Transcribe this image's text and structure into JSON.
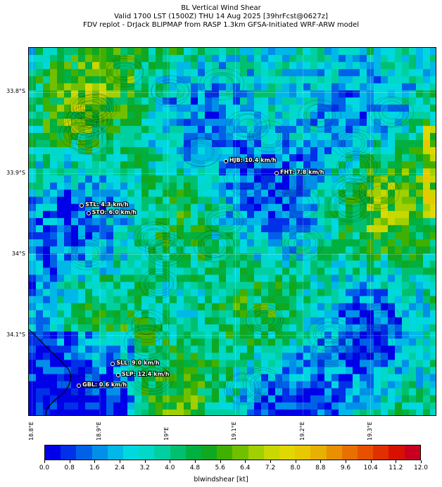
{
  "title": {
    "line1": "BL Vertical Wind Shear",
    "line2": "Valid 1700 LST (1500Z) THU 14 Aug 2025 [39hrFcst@0627z]",
    "line3": "FDV replot - DrJack BLIPMAP from RASP 1.3km GFSA-Initiated WRF-ARW model"
  },
  "axes": {
    "lat_labels": [
      "33.8°S",
      "33.9°S",
      "34°S",
      "34.1°S"
    ],
    "lon_labels": [
      "18.8°E",
      "18.9°E",
      "19°E",
      "19.1°E",
      "19.2°E",
      "19.3°E"
    ],
    "lat_values": [
      -33.8,
      -33.9,
      -34.0,
      -34.1
    ],
    "lon_values": [
      18.8,
      18.9,
      19.0,
      19.1,
      19.2,
      19.3
    ],
    "lat_range": [
      -34.2,
      -33.745
    ],
    "lon_range": [
      18.795,
      19.398
    ]
  },
  "stations": [
    {
      "label": "HJB: 10.4 km/h",
      "lon": 19.087,
      "lat": -33.886
    },
    {
      "label": "FHT: 7.8 km/h",
      "lon": 19.162,
      "lat": -33.9
    },
    {
      "label": "STL: 4.3 km/h",
      "lon": 18.874,
      "lat": -33.94
    },
    {
      "label": "STO: 6.0 km/h",
      "lon": 18.884,
      "lat": -33.95
    },
    {
      "label": "SLL: 9.0 km/h",
      "lon": 18.92,
      "lat": -34.136
    },
    {
      "label": "SLP: 12.4 km/h",
      "lon": 18.928,
      "lat": -34.15
    },
    {
      "label": "GBL: 0.6 km/h",
      "lon": 18.87,
      "lat": -34.163
    }
  ],
  "colorbar": {
    "label": "blwindshear [kt]",
    "tick_labels": [
      "0.0",
      "0.8",
      "1.6",
      "2.4",
      "3.2",
      "4.0",
      "4.8",
      "5.6",
      "6.4",
      "7.2",
      "8.0",
      "8.8",
      "9.6",
      "10.4",
      "11.2",
      "12.0"
    ],
    "min": 0,
    "max": 12,
    "colors": [
      "#0000e8",
      "#0030e8",
      "#0060e8",
      "#0090e8",
      "#00b8e8",
      "#00d8e0",
      "#00d8c8",
      "#00d0a0",
      "#00c070",
      "#00b040",
      "#10a820",
      "#40b000",
      "#70c000",
      "#a0d000",
      "#c8d800",
      "#e0d800",
      "#e8c800",
      "#e8b000",
      "#e89000",
      "#e87000",
      "#e85000",
      "#e03000",
      "#d81000",
      "#c80020"
    ]
  }
}
